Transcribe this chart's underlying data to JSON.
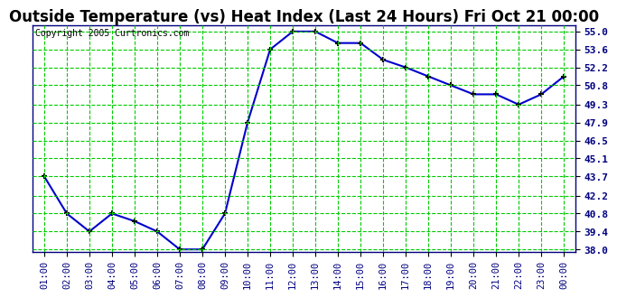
{
  "title": "Outside Temperature (vs) Heat Index (Last 24 Hours) Fri Oct 21 00:00",
  "copyright_text": "Copyright 2005 Curtronics.com",
  "x_labels": [
    "01:00",
    "02:00",
    "03:00",
    "04:00",
    "05:00",
    "06:00",
    "07:00",
    "08:00",
    "09:00",
    "10:00",
    "11:00",
    "12:00",
    "13:00",
    "14:00",
    "15:00",
    "16:00",
    "17:00",
    "18:00",
    "19:00",
    "20:00",
    "21:00",
    "22:00",
    "23:00",
    "00:00"
  ],
  "y_values": [
    43.7,
    40.8,
    39.4,
    40.8,
    40.2,
    39.4,
    38.0,
    38.0,
    40.8,
    47.9,
    53.6,
    55.0,
    55.0,
    54.1,
    54.1,
    52.8,
    52.2,
    51.5,
    50.8,
    50.1,
    50.1,
    49.3,
    50.1,
    51.5
  ],
  "ylim_min": 38.0,
  "ylim_max": 55.0,
  "yticks": [
    38.0,
    39.4,
    40.8,
    42.2,
    43.7,
    45.1,
    46.5,
    47.9,
    49.3,
    50.8,
    52.2,
    53.6,
    55.0
  ],
  "line_color": "#0000CC",
  "marker_color": "#000000",
  "bg_color": "#FFFFFF",
  "grid_color": "#00CC00",
  "title_fontsize": 12,
  "copyright_fontsize": 7,
  "tick_label_color": "#000080",
  "tick_fontsize": 7.5,
  "ytick_fontsize": 8
}
